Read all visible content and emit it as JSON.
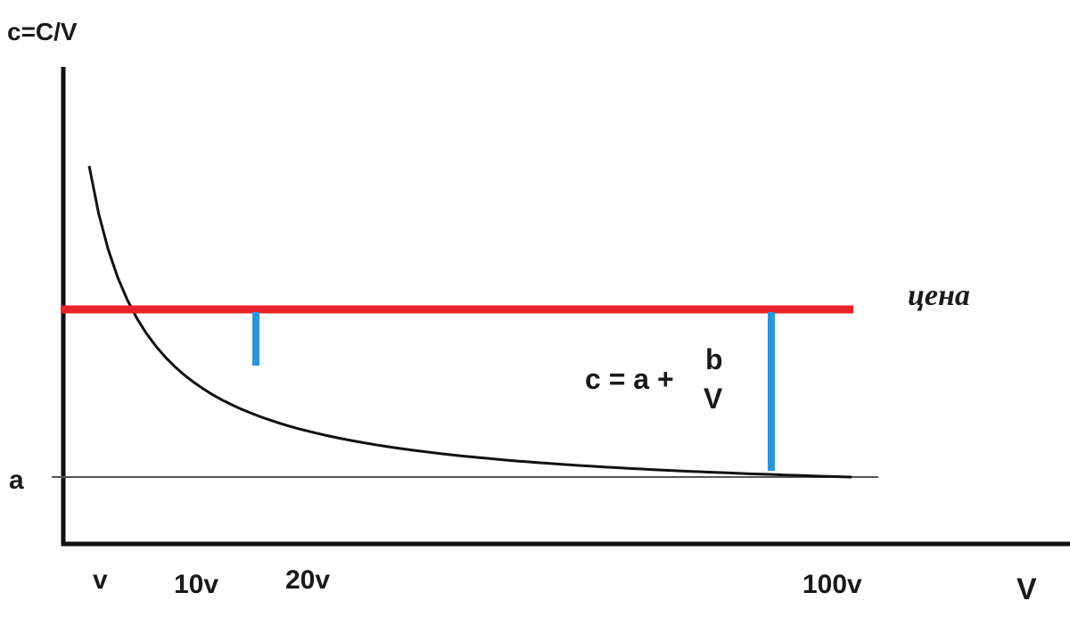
{
  "chart_data": {
    "type": "line",
    "ylabel": "c=C/V",
    "xlabel": "V",
    "y_tick_label": "a",
    "x_tick_labels": [
      "v",
      "10v",
      "20v",
      "100v"
    ],
    "price_label": "цена",
    "formula": {
      "lhs": "c = a +",
      "numerator": "b",
      "denominator": "V"
    },
    "grid": false,
    "series": [
      {
        "name": "",
        "x": [
          1,
          2,
          5,
          10,
          12,
          20,
          40,
          60,
          80,
          100,
          104
        ],
        "y": [
          6.3,
          5.6,
          4.4,
          3.3,
          3.0,
          2.2,
          1.3,
          0.85,
          0.55,
          0.35,
          0.3
        ]
      }
    ],
    "reference_lines": [
      {
        "label": "цена",
        "y": 3.2,
        "color": "#e8232a"
      },
      {
        "label": "a",
        "y": 0,
        "color": "#555555"
      }
    ],
    "gaps": [
      {
        "x": 20,
        "color": "#2b95d6"
      },
      {
        "x": 100,
        "color": "#2b95d6"
      }
    ],
    "colors": {
      "curve": "#111111",
      "price": "#e8232a",
      "gap": "#2b95d6",
      "axis": "#111111"
    }
  }
}
